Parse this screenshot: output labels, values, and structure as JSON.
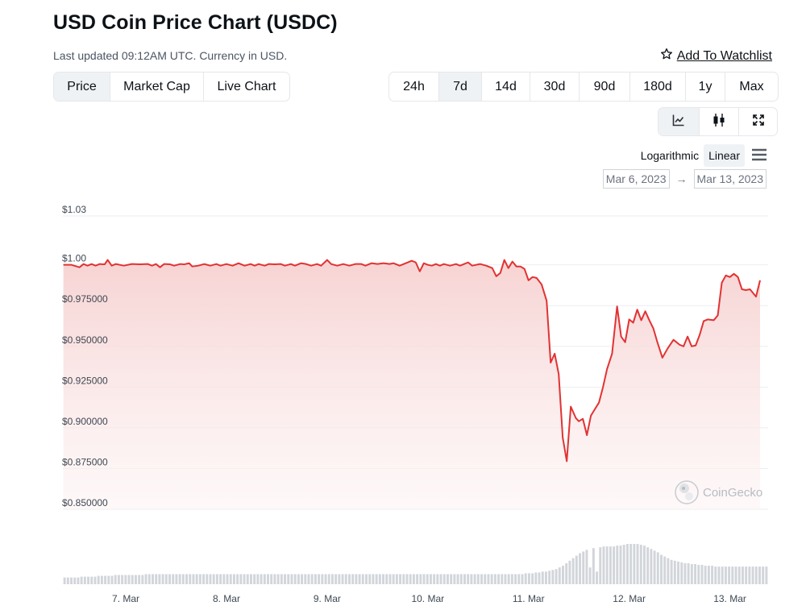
{
  "header": {
    "title": "USD Coin Price Chart (USDC)",
    "subtitle": "Last updated 09:12AM UTC. Currency in USD.",
    "watchlist": "Add To Watchlist"
  },
  "chart_type_tabs": [
    {
      "label": "Price",
      "active": true
    },
    {
      "label": "Market Cap",
      "active": false
    },
    {
      "label": "Live Chart",
      "active": false
    }
  ],
  "range_tabs": [
    {
      "label": "24h",
      "active": false
    },
    {
      "label": "7d",
      "active": true
    },
    {
      "label": "14d",
      "active": false
    },
    {
      "label": "30d",
      "active": false
    },
    {
      "label": "90d",
      "active": false
    },
    {
      "label": "180d",
      "active": false
    },
    {
      "label": "1y",
      "active": false
    },
    {
      "label": "Max",
      "active": false
    }
  ],
  "view_modes": [
    {
      "icon": "line-chart-icon",
      "active": true
    },
    {
      "icon": "candlestick-icon",
      "active": false
    },
    {
      "icon": "fullscreen-icon",
      "active": false
    }
  ],
  "scale": {
    "log_label": "Logarithmic",
    "linear_label": "Linear",
    "selected": "Linear"
  },
  "date_range": {
    "from": "Mar 6, 2023",
    "to": "Mar 13, 2023",
    "arrow": "→"
  },
  "watermark": "CoinGecko",
  "colors": {
    "line": "#e23232",
    "area_top": "#f8d6d6",
    "volume": "#d2d5da",
    "grid": "#eceef1"
  },
  "chart_data": {
    "type": "area",
    "title": "",
    "xlabel": "",
    "ylabel": "",
    "grid": true,
    "ylim": [
      0.85,
      1.03
    ],
    "y_ticks": [
      {
        "value": 1.03,
        "label": "$1.03"
      },
      {
        "value": 1.0,
        "label": "$1.00"
      },
      {
        "value": 0.975,
        "label": "$0.975000"
      },
      {
        "value": 0.95,
        "label": "$0.950000"
      },
      {
        "value": 0.925,
        "label": "$0.925000"
      },
      {
        "value": 0.9,
        "label": "$0.900000"
      },
      {
        "value": 0.875,
        "label": "$0.875000"
      },
      {
        "value": 0.85,
        "label": "$0.850000"
      }
    ],
    "x_ticks": [
      {
        "t": 7.0,
        "label": "7. Mar"
      },
      {
        "t": 8.0,
        "label": "8. Mar"
      },
      {
        "t": 9.0,
        "label": "9. Mar"
      },
      {
        "t": 10.0,
        "label": "10. Mar"
      },
      {
        "t": 11.0,
        "label": "11. Mar"
      },
      {
        "t": 12.0,
        "label": "12. Mar"
      },
      {
        "t": 13.0,
        "label": "13. Mar"
      }
    ],
    "xlim": [
      6.375,
      13.38
    ],
    "series": [
      {
        "values": [
          [
            6.38,
            1.0
          ],
          [
            6.46,
            1.0
          ],
          [
            6.54,
            0.9985
          ],
          [
            6.58,
            1.0005
          ],
          [
            6.62,
            0.9995
          ],
          [
            6.66,
            1.0005
          ],
          [
            6.7,
            0.9995
          ],
          [
            6.74,
            1.0005
          ],
          [
            6.79,
            1.0003
          ],
          [
            6.82,
            1.003
          ],
          [
            6.86,
            0.9995
          ],
          [
            6.9,
            1.0005
          ],
          [
            6.98,
            0.9995
          ],
          [
            7.06,
            1.0005
          ],
          [
            7.14,
            1.0003
          ],
          [
            7.22,
            1.0005
          ],
          [
            7.26,
            0.9995
          ],
          [
            7.3,
            1.0005
          ],
          [
            7.34,
            0.9985
          ],
          [
            7.38,
            1.0005
          ],
          [
            7.44,
            1.0003
          ],
          [
            7.48,
            0.9995
          ],
          [
            7.54,
            1.0005
          ],
          [
            7.58,
            1.0003
          ],
          [
            7.63,
            1.001
          ],
          [
            7.66,
            0.999
          ],
          [
            7.72,
            0.9995
          ],
          [
            7.78,
            1.0005
          ],
          [
            7.84,
            0.9995
          ],
          [
            7.9,
            1.0005
          ],
          [
            7.94,
            0.9995
          ],
          [
            8.0,
            1.0005
          ],
          [
            8.06,
            0.9995
          ],
          [
            8.12,
            1.001
          ],
          [
            8.18,
            0.9995
          ],
          [
            8.24,
            1.0005
          ],
          [
            8.28,
            0.9995
          ],
          [
            8.32,
            1.0005
          ],
          [
            8.38,
            0.9995
          ],
          [
            8.42,
            1.0005
          ],
          [
            8.48,
            1.0003
          ],
          [
            8.54,
            1.0005
          ],
          [
            8.58,
            0.9995
          ],
          [
            8.64,
            1.0005
          ],
          [
            8.68,
            0.9995
          ],
          [
            8.74,
            1.001
          ],
          [
            8.79,
            1.0005
          ],
          [
            8.84,
            0.9995
          ],
          [
            8.9,
            1.0005
          ],
          [
            8.94,
            0.9995
          ],
          [
            9.0,
            1.003
          ],
          [
            9.04,
            1.0005
          ],
          [
            9.1,
            0.9995
          ],
          [
            9.16,
            1.0005
          ],
          [
            9.22,
            0.9995
          ],
          [
            9.28,
            1.0005
          ],
          [
            9.34,
            1.0005
          ],
          [
            9.38,
            0.9995
          ],
          [
            9.44,
            1.001
          ],
          [
            9.5,
            1.0005
          ],
          [
            9.56,
            1.001
          ],
          [
            9.62,
            1.0005
          ],
          [
            9.66,
            1.001
          ],
          [
            9.72,
            0.9995
          ],
          [
            9.78,
            1.001
          ],
          [
            9.84,
            1.0025
          ],
          [
            9.88,
            1.0015
          ],
          [
            9.92,
            0.996
          ],
          [
            9.96,
            1.001
          ],
          [
            10.0,
            1.0
          ],
          [
            10.04,
            0.9995
          ],
          [
            10.08,
            1.0005
          ],
          [
            10.12,
            0.9995
          ],
          [
            10.16,
            1.0005
          ],
          [
            10.22,
            0.9995
          ],
          [
            10.28,
            1.0005
          ],
          [
            10.32,
            0.9995
          ],
          [
            10.36,
            1.0005
          ],
          [
            10.4,
            1.0015
          ],
          [
            10.44,
            0.9995
          ],
          [
            10.52,
            1.0005
          ],
          [
            10.58,
            0.9995
          ],
          [
            10.64,
            0.998
          ],
          [
            10.68,
            0.993
          ],
          [
            10.72,
            0.995
          ],
          [
            10.76,
            1.003
          ],
          [
            10.8,
            0.998
          ],
          [
            10.84,
            1.002
          ],
          [
            10.88,
            0.999
          ],
          [
            10.92,
            0.999
          ],
          [
            10.96,
            0.9975
          ],
          [
            11.0,
            0.9905
          ],
          [
            11.04,
            0.9925
          ],
          [
            11.08,
            0.992
          ],
          [
            11.13,
            0.988
          ],
          [
            11.16,
            0.982
          ],
          [
            11.18,
            0.978
          ],
          [
            11.22,
            0.94
          ],
          [
            11.26,
            0.9455
          ],
          [
            11.3,
            0.933
          ],
          [
            11.34,
            0.894
          ],
          [
            11.38,
            0.8795
          ],
          [
            11.42,
            0.913
          ],
          [
            11.47,
            0.906
          ],
          [
            11.5,
            0.904
          ],
          [
            11.54,
            0.9055
          ],
          [
            11.58,
            0.8955
          ],
          [
            11.62,
            0.9075
          ],
          [
            11.66,
            0.9115
          ],
          [
            11.7,
            0.9155
          ],
          [
            11.74,
            0.925
          ],
          [
            11.78,
            0.936
          ],
          [
            11.83,
            0.9455
          ],
          [
            11.88,
            0.9745
          ],
          [
            11.92,
            0.956
          ],
          [
            11.96,
            0.9525
          ],
          [
            12.0,
            0.9665
          ],
          [
            12.04,
            0.9645
          ],
          [
            12.08,
            0.9725
          ],
          [
            12.12,
            0.966
          ],
          [
            12.16,
            0.9715
          ],
          [
            12.2,
            0.966
          ],
          [
            12.24,
            0.961
          ],
          [
            12.28,
            0.9525
          ],
          [
            12.33,
            0.943
          ],
          [
            12.38,
            0.9485
          ],
          [
            12.44,
            0.954
          ],
          [
            12.5,
            0.951
          ],
          [
            12.54,
            0.95
          ],
          [
            12.58,
            0.956
          ],
          [
            12.62,
            0.95
          ],
          [
            12.66,
            0.9505
          ],
          [
            12.7,
            0.957
          ],
          [
            12.74,
            0.9655
          ],
          [
            12.78,
            0.9665
          ],
          [
            12.84,
            0.966
          ],
          [
            12.88,
            0.969
          ],
          [
            12.92,
            0.989
          ],
          [
            12.96,
            0.9935
          ],
          [
            13.0,
            0.9925
          ],
          [
            13.04,
            0.9945
          ],
          [
            13.08,
            0.9925
          ],
          [
            13.12,
            0.985
          ],
          [
            13.16,
            0.9845
          ],
          [
            13.2,
            0.985
          ],
          [
            13.26,
            0.9805
          ],
          [
            13.3,
            0.9905
          ]
        ]
      }
    ],
    "volume_relative": [
      8,
      8,
      8,
      8,
      8,
      9,
      9,
      9,
      9,
      9,
      10,
      10,
      10,
      10,
      10,
      11,
      11,
      11,
      11,
      11,
      11,
      11,
      11,
      11,
      12,
      12,
      12,
      12,
      12,
      12,
      12,
      12,
      12,
      12,
      12,
      12,
      12,
      12,
      12,
      12,
      12,
      12,
      12,
      12,
      12,
      12,
      12,
      12,
      12,
      12,
      12,
      12,
      12,
      12,
      12,
      12,
      12,
      12,
      12,
      12,
      12,
      12,
      12,
      12,
      12,
      12,
      12,
      12,
      12,
      12,
      12,
      12,
      12,
      12,
      12,
      12,
      12,
      12,
      12,
      12,
      12,
      12,
      12,
      12,
      12,
      12,
      12,
      12,
      12,
      12,
      12,
      12,
      12,
      12,
      12,
      12,
      12,
      12,
      12,
      12,
      12,
      12,
      12,
      12,
      12,
      12,
      12,
      12,
      12,
      12,
      12,
      12,
      12,
      12,
      12,
      12,
      12,
      12,
      12,
      12,
      12,
      12,
      12,
      12,
      12,
      12,
      12,
      12,
      12,
      12,
      12,
      12,
      12,
      12,
      12,
      12,
      13,
      13,
      13,
      14,
      14,
      15,
      15,
      16,
      17,
      18,
      20,
      22,
      25,
      28,
      31,
      34,
      37,
      39,
      41,
      20,
      43,
      15,
      44,
      45,
      45,
      45,
      45,
      46,
      46,
      47,
      48,
      48,
      48,
      48,
      47,
      46,
      44,
      42,
      40,
      38,
      35,
      33,
      31,
      29,
      28,
      27,
      26,
      25,
      25,
      24,
      24,
      23,
      23,
      22,
      22,
      22,
      21,
      21,
      21,
      21,
      21,
      21,
      21,
      21,
      21,
      21,
      21,
      21,
      21,
      21,
      21,
      21
    ]
  }
}
